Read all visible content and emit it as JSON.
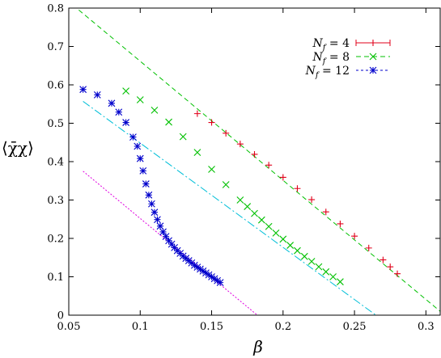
{
  "chart_data": {
    "type": "scatter",
    "xlabel": "β",
    "ylabel": "⟨χ̄χ⟩",
    "xlim": [
      0.05,
      0.31
    ],
    "ylim": [
      0,
      0.8
    ],
    "x_ticks": [
      "0.05",
      "0.1",
      "0.15",
      "0.2",
      "0.25",
      "0.3"
    ],
    "y_ticks": [
      "0",
      "0.1",
      "0.2",
      "0.3",
      "0.4",
      "0.5",
      "0.6",
      "0.7",
      "0.8"
    ],
    "grid": false,
    "legend_position": "top-right",
    "series": [
      {
        "name": "N_f = 4",
        "label_text": "N",
        "label_sub": "f",
        "label_rest": " = 4",
        "marker": "plus-errorbar",
        "color": "#e0001a",
        "x": [
          0.14,
          0.15,
          0.16,
          0.17,
          0.18,
          0.19,
          0.2,
          0.21,
          0.22,
          0.23,
          0.24,
          0.25,
          0.26,
          0.27,
          0.275,
          0.28
        ],
        "y": [
          0.525,
          0.502,
          0.474,
          0.446,
          0.419,
          0.391,
          0.359,
          0.33,
          0.301,
          0.269,
          0.238,
          0.206,
          0.175,
          0.144,
          0.126,
          0.108
        ]
      },
      {
        "name": "N_f = 8",
        "label_text": "N",
        "label_sub": "f",
        "label_rest": " = 8",
        "marker": "x",
        "color": "#00c000",
        "x": [
          0.09,
          0.1,
          0.11,
          0.12,
          0.13,
          0.14,
          0.15,
          0.16,
          0.17,
          0.175,
          0.18,
          0.185,
          0.19,
          0.195,
          0.2,
          0.205,
          0.21,
          0.215,
          0.22,
          0.225,
          0.23,
          0.235,
          0.24
        ],
        "y": [
          0.584,
          0.561,
          0.534,
          0.503,
          0.465,
          0.424,
          0.38,
          0.34,
          0.3,
          0.283,
          0.265,
          0.248,
          0.231,
          0.214,
          0.198,
          0.182,
          0.168,
          0.153,
          0.14,
          0.126,
          0.113,
          0.1,
          0.087
        ]
      },
      {
        "name": "N_f = 12",
        "label_text": "N",
        "label_sub": "f",
        "label_rest": " = 12",
        "marker": "asterisk",
        "color": "#0000cc",
        "x": [
          0.06,
          0.07,
          0.08,
          0.085,
          0.09,
          0.095,
          0.098,
          0.1,
          0.102,
          0.104,
          0.106,
          0.108,
          0.11,
          0.112,
          0.114,
          0.116,
          0.118,
          0.12,
          0.122,
          0.124,
          0.126,
          0.128,
          0.13,
          0.132,
          0.134,
          0.136,
          0.138,
          0.14,
          0.142,
          0.144,
          0.146,
          0.148,
          0.15,
          0.152,
          0.154,
          0.156
        ],
        "y": [
          0.588,
          0.574,
          0.552,
          0.529,
          0.502,
          0.464,
          0.44,
          0.408,
          0.376,
          0.342,
          0.313,
          0.29,
          0.268,
          0.249,
          0.232,
          0.217,
          0.205,
          0.194,
          0.185,
          0.176,
          0.168,
          0.161,
          0.154,
          0.148,
          0.142,
          0.136,
          0.13,
          0.125,
          0.12,
          0.115,
          0.11,
          0.105,
          0.1,
          0.095,
          0.09,
          0.085
        ]
      }
    ],
    "fit_lines": [
      {
        "color": "#00c000",
        "dash": "6,4",
        "x": [
          0.057,
          0.31
        ],
        "y": [
          0.795,
          0.01
        ]
      },
      {
        "color": "#00bfd8",
        "dash": "10,3,2,3",
        "x": [
          0.06,
          0.265
        ],
        "y": [
          0.557,
          0.0
        ]
      },
      {
        "color": "#e000e0",
        "dash": "2,2",
        "x": [
          0.06,
          0.182
        ],
        "y": [
          0.375,
          0.0
        ]
      }
    ]
  }
}
